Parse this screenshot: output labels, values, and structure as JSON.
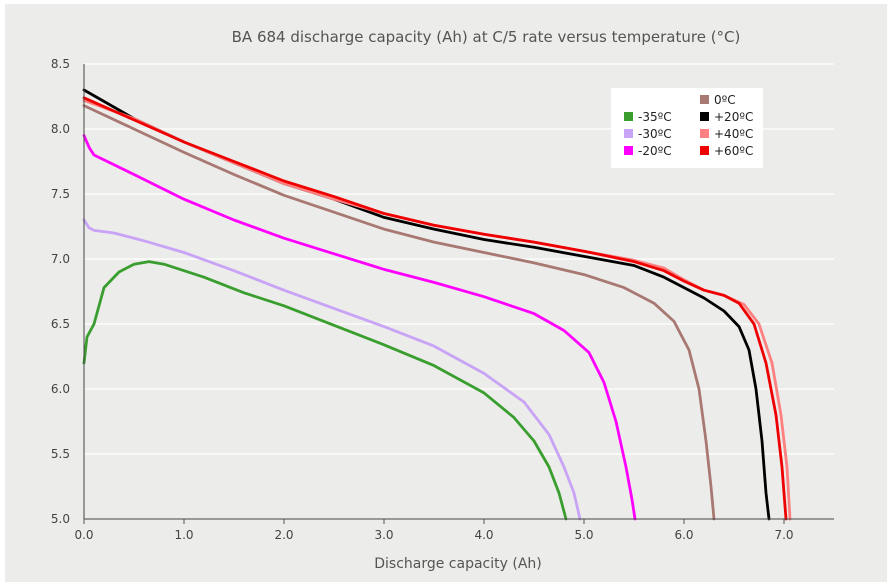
{
  "chart_data": {
    "type": "line",
    "title": "BA 684 discharge capacity (Ah) at C/5 rate versus temperature (°C)",
    "xlabel": "Discharge capacity (Ah)",
    "ylabel": "",
    "xlim": [
      0,
      7.5
    ],
    "ylim": [
      5.0,
      8.5
    ],
    "xticks": [
      "0.0",
      "1.0",
      "2.0",
      "3.0",
      "4.0",
      "5.0",
      "6.0",
      "7.0"
    ],
    "yticks": [
      "5.0",
      "5.5",
      "6.0",
      "6.5",
      "7.0",
      "7.5",
      "8.0",
      "8.5"
    ],
    "grid": "horizontal",
    "legend_position": "top-right",
    "series": [
      {
        "name": "-35ºC",
        "color": "#3a9e2f",
        "points": [
          [
            0,
            6.2
          ],
          [
            0.03,
            6.4
          ],
          [
            0.1,
            6.5
          ],
          [
            0.2,
            6.78
          ],
          [
            0.35,
            6.9
          ],
          [
            0.5,
            6.96
          ],
          [
            0.65,
            6.98
          ],
          [
            0.8,
            6.96
          ],
          [
            1.2,
            6.86
          ],
          [
            1.6,
            6.74
          ],
          [
            2.0,
            6.64
          ],
          [
            2.5,
            6.49
          ],
          [
            3.0,
            6.34
          ],
          [
            3.5,
            6.18
          ],
          [
            4.0,
            5.97
          ],
          [
            4.3,
            5.78
          ],
          [
            4.5,
            5.6
          ],
          [
            4.65,
            5.4
          ],
          [
            4.75,
            5.2
          ],
          [
            4.82,
            5.0
          ]
        ]
      },
      {
        "name": "-30ºC",
        "color": "#c9a3f5",
        "points": [
          [
            0,
            7.3
          ],
          [
            0.05,
            7.24
          ],
          [
            0.1,
            7.22
          ],
          [
            0.3,
            7.2
          ],
          [
            0.6,
            7.14
          ],
          [
            1.0,
            7.05
          ],
          [
            1.5,
            6.91
          ],
          [
            2.0,
            6.76
          ],
          [
            2.5,
            6.62
          ],
          [
            3.0,
            6.48
          ],
          [
            3.5,
            6.33
          ],
          [
            4.0,
            6.12
          ],
          [
            4.4,
            5.9
          ],
          [
            4.65,
            5.65
          ],
          [
            4.8,
            5.4
          ],
          [
            4.9,
            5.2
          ],
          [
            4.96,
            5.0
          ]
        ]
      },
      {
        "name": "-20ºC",
        "color": "#ff00ff",
        "points": [
          [
            0,
            7.95
          ],
          [
            0.05,
            7.86
          ],
          [
            0.1,
            7.8
          ],
          [
            0.5,
            7.65
          ],
          [
            1.0,
            7.46
          ],
          [
            1.5,
            7.3
          ],
          [
            2.0,
            7.16
          ],
          [
            2.5,
            7.04
          ],
          [
            3.0,
            6.92
          ],
          [
            3.5,
            6.82
          ],
          [
            4.0,
            6.71
          ],
          [
            4.5,
            6.58
          ],
          [
            4.8,
            6.45
          ],
          [
            5.05,
            6.28
          ],
          [
            5.2,
            6.05
          ],
          [
            5.32,
            5.75
          ],
          [
            5.42,
            5.4
          ],
          [
            5.48,
            5.15
          ],
          [
            5.51,
            5.0
          ]
        ]
      },
      {
        "name": "0ºC",
        "color": "#a87872",
        "points": [
          [
            0,
            8.18
          ],
          [
            0.5,
            8.0
          ],
          [
            1.0,
            7.82
          ],
          [
            1.5,
            7.65
          ],
          [
            2.0,
            7.49
          ],
          [
            2.5,
            7.36
          ],
          [
            3.0,
            7.23
          ],
          [
            3.5,
            7.13
          ],
          [
            4.0,
            7.05
          ],
          [
            4.5,
            6.97
          ],
          [
            5.0,
            6.88
          ],
          [
            5.4,
            6.78
          ],
          [
            5.7,
            6.66
          ],
          [
            5.9,
            6.52
          ],
          [
            6.05,
            6.3
          ],
          [
            6.15,
            6.0
          ],
          [
            6.22,
            5.6
          ],
          [
            6.27,
            5.25
          ],
          [
            6.3,
            5.0
          ]
        ]
      },
      {
        "name": "+20ºC",
        "color": "#000000",
        "points": [
          [
            0,
            8.3
          ],
          [
            0.5,
            8.08
          ],
          [
            1.0,
            7.9
          ],
          [
            1.5,
            7.74
          ],
          [
            2.0,
            7.58
          ],
          [
            2.5,
            7.46
          ],
          [
            3.0,
            7.32
          ],
          [
            3.5,
            7.23
          ],
          [
            4.0,
            7.15
          ],
          [
            4.5,
            7.09
          ],
          [
            5.0,
            7.02
          ],
          [
            5.5,
            6.95
          ],
          [
            5.8,
            6.86
          ],
          [
            6.0,
            6.78
          ],
          [
            6.2,
            6.7
          ],
          [
            6.4,
            6.6
          ],
          [
            6.55,
            6.48
          ],
          [
            6.65,
            6.3
          ],
          [
            6.72,
            6.0
          ],
          [
            6.78,
            5.6
          ],
          [
            6.82,
            5.2
          ],
          [
            6.85,
            5.0
          ]
        ]
      },
      {
        "name": "+40ºC",
        "color": "#ff8080",
        "points": [
          [
            0,
            8.22
          ],
          [
            0.5,
            8.08
          ],
          [
            1.0,
            7.9
          ],
          [
            1.5,
            7.74
          ],
          [
            2.0,
            7.58
          ],
          [
            2.5,
            7.46
          ],
          [
            3.0,
            7.35
          ],
          [
            3.5,
            7.26
          ],
          [
            4.0,
            7.19
          ],
          [
            4.5,
            7.13
          ],
          [
            5.0,
            7.06
          ],
          [
            5.5,
            6.99
          ],
          [
            5.8,
            6.93
          ],
          [
            6.0,
            6.84
          ],
          [
            6.2,
            6.76
          ],
          [
            6.4,
            6.72
          ],
          [
            6.6,
            6.65
          ],
          [
            6.75,
            6.5
          ],
          [
            6.88,
            6.2
          ],
          [
            6.97,
            5.8
          ],
          [
            7.03,
            5.4
          ],
          [
            7.06,
            5.0
          ]
        ]
      },
      {
        "name": "+60ºC",
        "color": "#ee0000",
        "points": [
          [
            0,
            8.24
          ],
          [
            0.5,
            8.07
          ],
          [
            1.0,
            7.9
          ],
          [
            1.5,
            7.75
          ],
          [
            2.0,
            7.6
          ],
          [
            2.5,
            7.48
          ],
          [
            3.0,
            7.35
          ],
          [
            3.5,
            7.26
          ],
          [
            4.0,
            7.19
          ],
          [
            4.5,
            7.13
          ],
          [
            5.0,
            7.06
          ],
          [
            5.5,
            6.98
          ],
          [
            5.8,
            6.91
          ],
          [
            6.0,
            6.83
          ],
          [
            6.2,
            6.76
          ],
          [
            6.4,
            6.72
          ],
          [
            6.55,
            6.66
          ],
          [
            6.7,
            6.5
          ],
          [
            6.82,
            6.2
          ],
          [
            6.92,
            5.8
          ],
          [
            6.98,
            5.4
          ],
          [
            7.02,
            5.0
          ]
        ]
      }
    ]
  }
}
